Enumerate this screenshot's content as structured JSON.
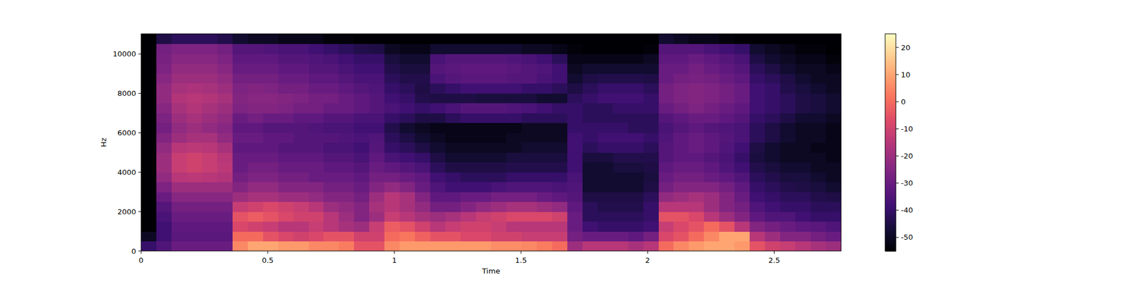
{
  "chart_data": {
    "type": "heatmap",
    "x_label": "Time",
    "y_label": "Hz",
    "xlim": [
      0,
      2.764
    ],
    "ylim": [
      0,
      11025
    ],
    "xticks": [
      0,
      0.5,
      1,
      1.5,
      2,
      2.5
    ],
    "yticks": [
      0,
      2000,
      4000,
      6000,
      8000,
      10000
    ],
    "colorbar_range": [
      -55,
      25
    ],
    "colorbar_ticks": [
      20,
      10,
      0,
      -10,
      -20,
      -30,
      -40,
      -50
    ],
    "cells": [
      [
        -40,
        -35,
        -30,
        -30,
        -30,
        -30,
        5,
        10,
        10,
        8,
        8,
        5,
        5,
        3,
        -5,
        -5,
        5,
        8,
        8,
        8,
        8,
        8,
        8,
        6,
        6,
        5,
        3,
        0,
        -20,
        -15,
        -15,
        -15,
        -18,
        -15,
        0,
        5,
        8,
        10,
        10,
        8,
        -5,
        -10,
        -12,
        -15,
        -18,
        -20
      ],
      [
        -50,
        -38,
        -33,
        -33,
        -33,
        -33,
        0,
        0,
        -5,
        -8,
        -10,
        -8,
        -5,
        -5,
        -10,
        -10,
        0,
        2,
        -2,
        -5,
        -5,
        -8,
        -8,
        -10,
        -10,
        -12,
        -12,
        -12,
        -28,
        -30,
        -30,
        -30,
        -32,
        -28,
        -8,
        -5,
        0,
        5,
        10,
        10,
        -15,
        -20,
        -25,
        -25,
        -28,
        -30
      ],
      [
        -55,
        -38,
        -32,
        -32,
        -32,
        -32,
        -8,
        -10,
        -12,
        -15,
        -15,
        -12,
        -15,
        -18,
        -20,
        -12,
        -3,
        -5,
        -10,
        -15,
        -12,
        -10,
        -10,
        -12,
        -15,
        -15,
        -15,
        -15,
        -30,
        -38,
        -40,
        -40,
        -40,
        -38,
        -12,
        -8,
        -5,
        0,
        -5,
        -15,
        -25,
        -28,
        -30,
        -32,
        -33,
        -35
      ],
      [
        -55,
        -36,
        -30,
        -30,
        -30,
        -30,
        -5,
        -3,
        -5,
        -8,
        -10,
        -10,
        -15,
        -20,
        -25,
        -20,
        -12,
        -15,
        -18,
        -20,
        -18,
        -15,
        -12,
        -10,
        -8,
        -8,
        -8,
        -10,
        -30,
        -42,
        -42,
        -42,
        -42,
        -40,
        -5,
        -5,
        -8,
        -15,
        -20,
        -25,
        -32,
        -35,
        -35,
        -38,
        -40,
        -40
      ],
      [
        -55,
        -34,
        -28,
        -28,
        -28,
        -28,
        -12,
        -10,
        -8,
        -10,
        -12,
        -15,
        -20,
        -22,
        -25,
        -18,
        -15,
        -18,
        -22,
        -28,
        -28,
        -25,
        -22,
        -20,
        -18,
        -18,
        -20,
        -22,
        -32,
        -42,
        -44,
        -44,
        -44,
        -40,
        -15,
        -15,
        -15,
        -20,
        -25,
        -28,
        -35,
        -38,
        -40,
        -40,
        -42,
        -42
      ],
      [
        -55,
        -30,
        -24,
        -24,
        -24,
        -24,
        -20,
        -18,
        -18,
        -20,
        -20,
        -22,
        -25,
        -25,
        -28,
        -20,
        -15,
        -18,
        -25,
        -32,
        -32,
        -30,
        -30,
        -28,
        -28,
        -28,
        -30,
        -32,
        -34,
        -45,
        -45,
        -45,
        -45,
        -42,
        -22,
        -20,
        -18,
        -20,
        -25,
        -30,
        -38,
        -40,
        -42,
        -42,
        -44,
        -45
      ],
      [
        -55,
        -26,
        -20,
        -20,
        -20,
        -20,
        -25,
        -22,
        -22,
        -25,
        -25,
        -25,
        -28,
        -28,
        -30,
        -25,
        -22,
        -25,
        -30,
        -35,
        -38,
        -38,
        -38,
        -36,
        -35,
        -35,
        -35,
        -36,
        -35,
        -48,
        -48,
        -48,
        -48,
        -45,
        -28,
        -25,
        -25,
        -25,
        -28,
        -32,
        -40,
        -42,
        -44,
        -45,
        -46,
        -48
      ],
      [
        -55,
        -22,
        -15,
        -14,
        -15,
        -16,
        -28,
        -26,
        -26,
        -28,
        -28,
        -30,
        -30,
        -30,
        -32,
        -28,
        -28,
        -30,
        -32,
        -38,
        -40,
        -42,
        -42,
        -42,
        -40,
        -40,
        -40,
        -40,
        -36,
        -48,
        -48,
        -48,
        -48,
        -46,
        -30,
        -28,
        -28,
        -30,
        -32,
        -35,
        -42,
        -44,
        -46,
        -46,
        -48,
        -50
      ],
      [
        -55,
        -20,
        -12,
        -10,
        -12,
        -14,
        -30,
        -28,
        -28,
        -30,
        -30,
        -30,
        -32,
        -32,
        -34,
        -30,
        -32,
        -34,
        -36,
        -42,
        -45,
        -45,
        -45,
        -45,
        -44,
        -44,
        -44,
        -44,
        -38,
        -48,
        -48,
        -46,
        -46,
        -45,
        -32,
        -30,
        -30,
        -32,
        -35,
        -38,
        -44,
        -46,
        -48,
        -48,
        -50,
        -50
      ],
      [
        -55,
        -20,
        -12,
        -10,
        -12,
        -15,
        -30,
        -30,
        -30,
        -32,
        -32,
        -32,
        -34,
        -34,
        -36,
        -32,
        -36,
        -38,
        -40,
        -45,
        -48,
        -48,
        -48,
        -48,
        -46,
        -46,
        -46,
        -46,
        -38,
        -46,
        -46,
        -44,
        -44,
        -44,
        -34,
        -32,
        -32,
        -34,
        -36,
        -40,
        -46,
        -48,
        -50,
        -50,
        -50,
        -52
      ],
      [
        -55,
        -22,
        -15,
        -14,
        -15,
        -18,
        -32,
        -32,
        -32,
        -34,
        -34,
        -34,
        -36,
        -36,
        -38,
        -34,
        -40,
        -42,
        -45,
        -48,
        -50,
        -50,
        -50,
        -50,
        -50,
        -48,
        -48,
        -48,
        -38,
        -42,
        -40,
        -40,
        -40,
        -42,
        -34,
        -32,
        -30,
        -32,
        -35,
        -38,
        -45,
        -48,
        -50,
        -50,
        -52,
        -52
      ],
      [
        -55,
        -25,
        -20,
        -18,
        -18,
        -22,
        -30,
        -30,
        -32,
        -32,
        -34,
        -34,
        -34,
        -35,
        -36,
        -35,
        -42,
        -45,
        -48,
        -50,
        -52,
        -52,
        -52,
        -52,
        -50,
        -50,
        -50,
        -50,
        -38,
        -40,
        -38,
        -38,
        -38,
        -40,
        -35,
        -32,
        -30,
        -32,
        -34,
        -36,
        -42,
        -45,
        -48,
        -50,
        -50,
        -52
      ],
      [
        -55,
        -28,
        -22,
        -20,
        -22,
        -24,
        -32,
        -32,
        -34,
        -34,
        -34,
        -35,
        -36,
        -36,
        -38,
        -38,
        -44,
        -48,
        -50,
        -52,
        -52,
        -52,
        -52,
        -52,
        -52,
        -50,
        -50,
        -50,
        -40,
        -40,
        -40,
        -40,
        -42,
        -42,
        -36,
        -34,
        -32,
        -34,
        -35,
        -36,
        -42,
        -45,
        -48,
        -50,
        -50,
        -52
      ],
      [
        -55,
        -26,
        -20,
        -18,
        -20,
        -22,
        -30,
        -28,
        -30,
        -30,
        -32,
        -32,
        -34,
        -34,
        -36,
        -36,
        -40,
        -42,
        -45,
        -45,
        -42,
        -40,
        -40,
        -40,
        -40,
        -42,
        -42,
        -42,
        -40,
        -42,
        -42,
        -42,
        -42,
        -42,
        -34,
        -32,
        -30,
        -30,
        -32,
        -34,
        -40,
        -42,
        -45,
        -48,
        -48,
        -50
      ],
      [
        -55,
        -24,
        -18,
        -16,
        -18,
        -20,
        -26,
        -25,
        -25,
        -26,
        -28,
        -28,
        -30,
        -30,
        -32,
        -34,
        -36,
        -38,
        -40,
        -38,
        -36,
        -34,
        -34,
        -34,
        -35,
        -36,
        -38,
        -40,
        -40,
        -42,
        -42,
        -40,
        -40,
        -40,
        -30,
        -28,
        -26,
        -28,
        -30,
        -32,
        -38,
        -40,
        -42,
        -45,
        -46,
        -48
      ],
      [
        -55,
        -22,
        -16,
        -15,
        -16,
        -18,
        -25,
        -24,
        -24,
        -25,
        -26,
        -28,
        -28,
        -30,
        -32,
        -34,
        -38,
        -40,
        -44,
        -45,
        -45,
        -45,
        -46,
        -46,
        -46,
        -46,
        -48,
        -48,
        -42,
        -40,
        -38,
        -38,
        -38,
        -40,
        -28,
        -26,
        -25,
        -26,
        -28,
        -30,
        -38,
        -40,
        -42,
        -45,
        -46,
        -48
      ],
      [
        -55,
        -22,
        -18,
        -17,
        -18,
        -20,
        -26,
        -25,
        -26,
        -28,
        -28,
        -30,
        -30,
        -32,
        -34,
        -35,
        -40,
        -42,
        -45,
        -42,
        -40,
        -38,
        -38,
        -38,
        -38,
        -40,
        -40,
        -42,
        -45,
        -42,
        -40,
        -40,
        -40,
        -42,
        -28,
        -26,
        -25,
        -26,
        -28,
        -30,
        -38,
        -40,
        -44,
        -46,
        -48,
        -50
      ],
      [
        -55,
        -24,
        -20,
        -20,
        -20,
        -22,
        -28,
        -28,
        -28,
        -30,
        -30,
        -32,
        -32,
        -34,
        -36,
        -36,
        -42,
        -44,
        -44,
        -36,
        -34,
        -33,
        -33,
        -33,
        -34,
        -34,
        -36,
        -38,
        -48,
        -45,
        -44,
        -44,
        -44,
        -45,
        -30,
        -28,
        -27,
        -28,
        -30,
        -32,
        -40,
        -42,
        -45,
        -48,
        -50,
        -50
      ],
      [
        -55,
        -26,
        -22,
        -22,
        -22,
        -24,
        -30,
        -30,
        -30,
        -32,
        -32,
        -34,
        -34,
        -36,
        -38,
        -38,
        -44,
        -46,
        -46,
        -34,
        -33,
        -32,
        -32,
        -32,
        -33,
        -34,
        -35,
        -38,
        -50,
        -48,
        -48,
        -48,
        -48,
        -48,
        -30,
        -30,
        -28,
        -30,
        -32,
        -34,
        -42,
        -45,
        -48,
        -50,
        -50,
        -52
      ],
      [
        -55,
        -27,
        -24,
        -24,
        -24,
        -26,
        -32,
        -32,
        -32,
        -34,
        -34,
        -35,
        -36,
        -38,
        -40,
        -40,
        -46,
        -48,
        -48,
        -36,
        -34,
        -34,
        -34,
        -34,
        -35,
        -36,
        -38,
        -42,
        -52,
        -52,
        -52,
        -52,
        -52,
        -50,
        -32,
        -32,
        -30,
        -32,
        -34,
        -36,
        -45,
        -48,
        -50,
        -52,
        -52,
        -54
      ],
      [
        -55,
        -28,
        -26,
        -26,
        -26,
        -28,
        -34,
        -34,
        -35,
        -36,
        -36,
        -38,
        -40,
        -42,
        -44,
        -45,
        -50,
        -52,
        -52,
        -48,
        -48,
        -48,
        -48,
        -48,
        -48,
        -50,
        -50,
        -52,
        -54,
        -55,
        -55,
        -55,
        -55,
        -54,
        -34,
        -34,
        -34,
        -36,
        -38,
        -40,
        -48,
        -50,
        -52,
        -54,
        -54,
        -55
      ],
      [
        -55,
        -45,
        -42,
        -42,
        -42,
        -44,
        -48,
        -50,
        -50,
        -52,
        -52,
        -52,
        -54,
        -54,
        -55,
        -55,
        -55,
        -55,
        -55,
        -55,
        -55,
        -55,
        -55,
        -55,
        -55,
        -55,
        -55,
        -55,
        -55,
        -55,
        -55,
        -55,
        -55,
        -55,
        -48,
        -50,
        -52,
        -52,
        -54,
        -55,
        -55,
        -55,
        -55,
        -55,
        -55,
        -55
      ]
    ]
  }
}
